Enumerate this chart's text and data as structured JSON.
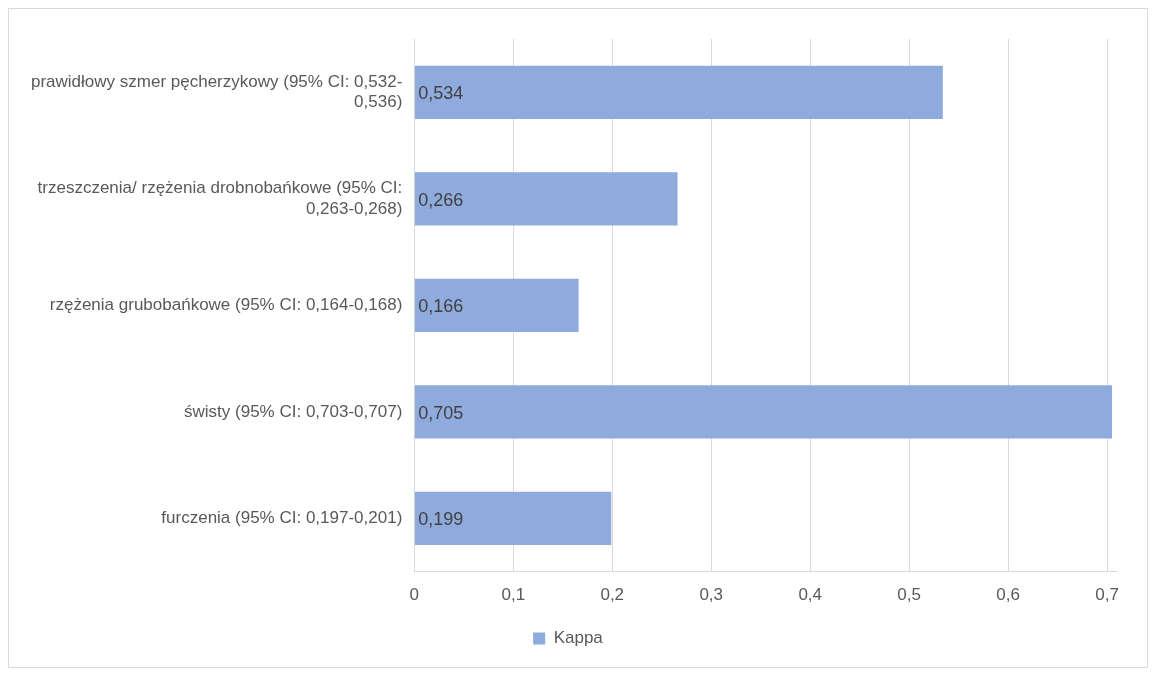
{
  "chart_data": {
    "type": "bar",
    "orientation": "horizontal",
    "categories": [
      "prawidłowy szmer pęcherzykowy (95% CI: 0,532-0,536)",
      "trzeszczenia/ rzężenia drobnobańkowe (95% CI: 0,263-0,268)",
      "rzężenia grubobańkowe (95% CI: 0,164-0,168)",
      "świsty (95% CI: 0,703-0,707)",
      "furczenia (95% CI: 0,197-0,201)"
    ],
    "series": [
      {
        "name": "Kappa",
        "color": "#8faadc",
        "values": [
          0.534,
          0.266,
          0.166,
          0.705,
          0.199
        ],
        "value_labels": [
          "0,534",
          "0,266",
          "0,166",
          "0,705",
          "0,199"
        ]
      }
    ],
    "xlim": [
      0,
      0.71
    ],
    "xticks": [
      0,
      {
        "value": 0.1,
        "label": "0,1"
      },
      {
        "value": 0.2,
        "label": "0,2"
      },
      {
        "value": 0.3,
        "label": "0,3"
      },
      {
        "value": 0.4,
        "label": "0,4"
      },
      {
        "value": 0.5,
        "label": "0,5"
      },
      {
        "value": 0.6,
        "label": "0,6"
      },
      {
        "value": 0.7,
        "label": "0,7"
      }
    ],
    "grid": "x",
    "legend": "bottom"
  }
}
